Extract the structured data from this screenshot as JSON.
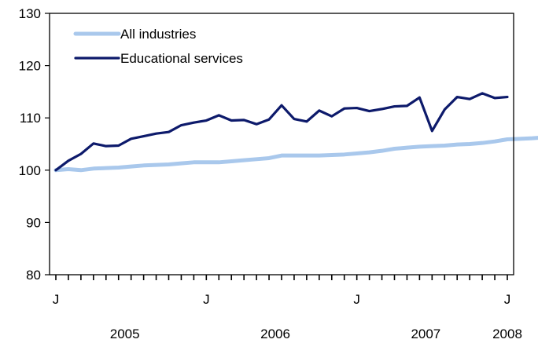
{
  "chart_data": {
    "type": "line",
    "title": "",
    "xlabel": "",
    "ylabel": "",
    "ylim": [
      80,
      130
    ],
    "yticks": [
      80,
      90,
      100,
      110,
      120,
      130
    ],
    "grid": false,
    "legend_position": "top-left",
    "month_labels": [
      {
        "index": 0,
        "label": "J"
      },
      {
        "index": 12,
        "label": "J"
      },
      {
        "index": 24,
        "label": "J"
      },
      {
        "index": 36,
        "label": "J"
      }
    ],
    "year_labels": [
      {
        "center": 5.5,
        "label": "2005"
      },
      {
        "center": 17.5,
        "label": "2006"
      },
      {
        "center": 29.5,
        "label": "2007"
      },
      {
        "center": 36,
        "label": "2008"
      }
    ],
    "series": [
      {
        "name": "All industries",
        "color": "#a9c8ec",
        "values": [
          100.0,
          100.2,
          100.0,
          100.3,
          100.4,
          100.5,
          100.7,
          100.9,
          101.0,
          101.1,
          101.3,
          101.5,
          101.5,
          101.5,
          101.7,
          101.9,
          102.1,
          102.3,
          102.8,
          102.8,
          102.8,
          102.8,
          102.9,
          103.0,
          103.2,
          103.4,
          103.7,
          104.1,
          104.3,
          104.5,
          104.6,
          104.7,
          104.9,
          105.0,
          105.2,
          105.5,
          105.9,
          106.0,
          106.1,
          106.3
        ]
      },
      {
        "name": "Educational services",
        "color": "#0d1a6b",
        "values": [
          100.0,
          101.8,
          103.1,
          105.1,
          104.6,
          104.7,
          106.0,
          106.5,
          107.0,
          107.3,
          108.6,
          109.1,
          109.5,
          110.5,
          109.5,
          109.6,
          108.8,
          109.7,
          112.4,
          109.8,
          109.3,
          111.4,
          110.3,
          111.8,
          111.9,
          111.3,
          111.7,
          112.2,
          112.3,
          113.9,
          107.5,
          111.6,
          114.0,
          113.6,
          114.7,
          113.8,
          114.0
        ]
      }
    ]
  }
}
